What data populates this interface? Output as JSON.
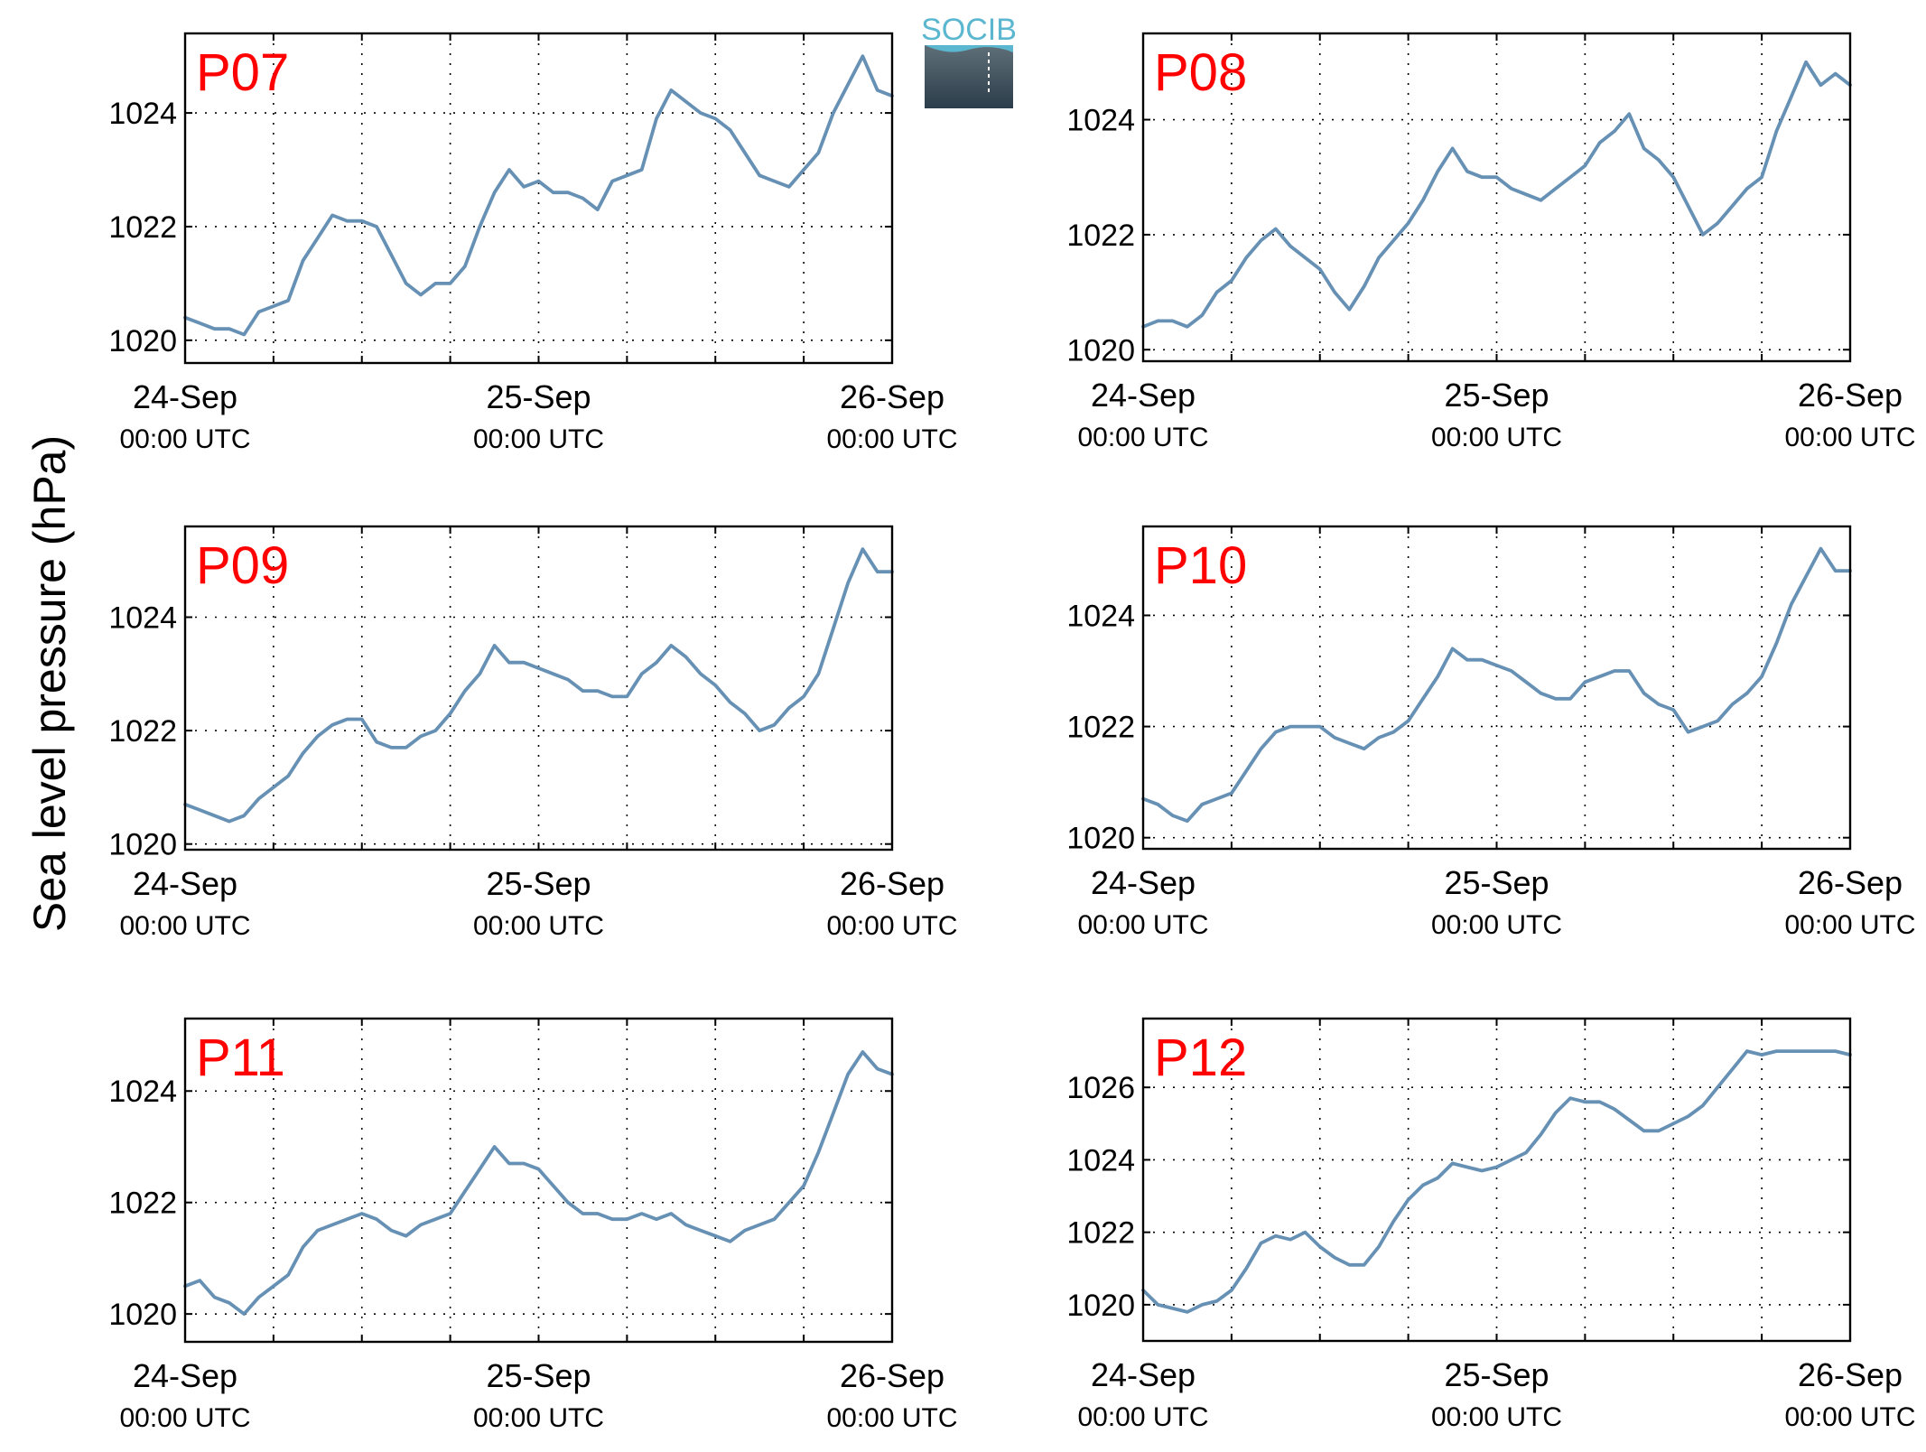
{
  "figure": {
    "ylabel": "Sea level pressure (hPa)",
    "logo_text": "SOCIB",
    "colors": {
      "line": "#6690b4",
      "panel_label": "#ff0000",
      "axis": "#000000",
      "grid": "#000000",
      "logo_top": "#5bb6cf",
      "logo_bottom": "#2b3d4a"
    }
  },
  "chart_data": [
    {
      "type": "line",
      "panel": "P07",
      "label": "P07",
      "x_range": [
        "24-Sep",
        "26-Sep"
      ],
      "xticks": [
        {
          "date": "24-Sep",
          "time": "00:00 UTC"
        },
        {
          "date": "25-Sep",
          "time": "00:00 UTC"
        },
        {
          "date": "26-Sep",
          "time": "00:00 UTC"
        }
      ],
      "ylim": [
        1019.6,
        1025.4
      ],
      "yticks": [
        1020,
        1022,
        1024
      ],
      "grid": true,
      "series": [
        {
          "x_hours": [
            0,
            1,
            2,
            3,
            4,
            5,
            6,
            7,
            8,
            9,
            10,
            11,
            12,
            13,
            14,
            15,
            16,
            17,
            18,
            19,
            20,
            21,
            22,
            23,
            24,
            25,
            26,
            27,
            28,
            29,
            30,
            31,
            32,
            33,
            34,
            35,
            36,
            37,
            38,
            39,
            40,
            41,
            42,
            43,
            44,
            45,
            46,
            47,
            48
          ],
          "values": [
            1020.4,
            1020.3,
            1020.2,
            1020.2,
            1020.1,
            1020.5,
            1020.6,
            1020.7,
            1021.4,
            1021.8,
            1022.2,
            1022.1,
            1022.1,
            1022.0,
            1021.5,
            1021.0,
            1020.8,
            1021.0,
            1021.0,
            1021.3,
            1022.0,
            1022.6,
            1023.0,
            1022.7,
            1022.8,
            1022.6,
            1022.6,
            1022.5,
            1022.3,
            1022.8,
            1022.9,
            1023.0,
            1023.9,
            1024.4,
            1024.2,
            1024.0,
            1023.9,
            1023.7,
            1023.3,
            1022.9,
            1022.8,
            1022.7,
            1023.0,
            1023.3,
            1024.0,
            1024.5,
            1025.0,
            1024.4,
            1024.3
          ]
        }
      ]
    },
    {
      "type": "line",
      "panel": "P08",
      "label": "P08",
      "x_range": [
        "24-Sep",
        "26-Sep"
      ],
      "xticks": [
        {
          "date": "24-Sep",
          "time": "00:00 UTC"
        },
        {
          "date": "25-Sep",
          "time": "00:00 UTC"
        },
        {
          "date": "26-Sep",
          "time": "00:00 UTC"
        }
      ],
      "ylim": [
        1019.8,
        1025.5
      ],
      "yticks": [
        1020,
        1022,
        1024
      ],
      "grid": true,
      "series": [
        {
          "x_hours": [
            0,
            1,
            2,
            3,
            4,
            5,
            6,
            7,
            8,
            9,
            10,
            11,
            12,
            13,
            14,
            15,
            16,
            17,
            18,
            19,
            20,
            21,
            22,
            23,
            24,
            25,
            26,
            27,
            28,
            29,
            30,
            31,
            32,
            33,
            34,
            35,
            36,
            37,
            38,
            39,
            40,
            41,
            42,
            43,
            44,
            45,
            46,
            47,
            48
          ],
          "values": [
            1020.4,
            1020.5,
            1020.5,
            1020.4,
            1020.6,
            1021.0,
            1021.2,
            1021.6,
            1021.9,
            1022.1,
            1021.8,
            1021.6,
            1021.4,
            1021.0,
            1020.7,
            1021.1,
            1021.6,
            1021.9,
            1022.2,
            1022.6,
            1023.1,
            1023.5,
            1023.1,
            1023.0,
            1023.0,
            1022.8,
            1022.7,
            1022.6,
            1022.8,
            1023.0,
            1023.2,
            1023.6,
            1023.8,
            1024.1,
            1023.5,
            1023.3,
            1023.0,
            1022.5,
            1022.0,
            1022.2,
            1022.5,
            1022.8,
            1023.0,
            1023.8,
            1024.4,
            1025.0,
            1024.6,
            1024.8,
            1024.6
          ]
        }
      ]
    },
    {
      "type": "line",
      "panel": "P09",
      "label": "P09",
      "x_range": [
        "24-Sep",
        "26-Sep"
      ],
      "xticks": [
        {
          "date": "24-Sep",
          "time": "00:00 UTC"
        },
        {
          "date": "25-Sep",
          "time": "00:00 UTC"
        },
        {
          "date": "26-Sep",
          "time": "00:00 UTC"
        }
      ],
      "ylim": [
        1019.9,
        1025.6
      ],
      "yticks": [
        1020,
        1022,
        1024
      ],
      "grid": true,
      "series": [
        {
          "x_hours": [
            0,
            1,
            2,
            3,
            4,
            5,
            6,
            7,
            8,
            9,
            10,
            11,
            12,
            13,
            14,
            15,
            16,
            17,
            18,
            19,
            20,
            21,
            22,
            23,
            24,
            25,
            26,
            27,
            28,
            29,
            30,
            31,
            32,
            33,
            34,
            35,
            36,
            37,
            38,
            39,
            40,
            41,
            42,
            43,
            44,
            45,
            46,
            47,
            48
          ],
          "values": [
            1020.7,
            1020.6,
            1020.5,
            1020.4,
            1020.5,
            1020.8,
            1021.0,
            1021.2,
            1021.6,
            1021.9,
            1022.1,
            1022.2,
            1022.2,
            1021.8,
            1021.7,
            1021.7,
            1021.9,
            1022.0,
            1022.3,
            1022.7,
            1023.0,
            1023.5,
            1023.2,
            1023.2,
            1023.1,
            1023.0,
            1022.9,
            1022.7,
            1022.7,
            1022.6,
            1022.6,
            1023.0,
            1023.2,
            1023.5,
            1023.3,
            1023.0,
            1022.8,
            1022.5,
            1022.3,
            1022.0,
            1022.1,
            1022.4,
            1022.6,
            1023.0,
            1023.8,
            1024.6,
            1025.2,
            1024.8,
            1024.8
          ]
        }
      ]
    },
    {
      "type": "line",
      "panel": "P10",
      "label": "P10",
      "x_range": [
        "24-Sep",
        "26-Sep"
      ],
      "xticks": [
        {
          "date": "24-Sep",
          "time": "00:00 UTC"
        },
        {
          "date": "25-Sep",
          "time": "00:00 UTC"
        },
        {
          "date": "26-Sep",
          "time": "00:00 UTC"
        }
      ],
      "ylim": [
        1019.8,
        1025.6
      ],
      "yticks": [
        1020,
        1022,
        1024
      ],
      "grid": true,
      "series": [
        {
          "x_hours": [
            0,
            1,
            2,
            3,
            4,
            5,
            6,
            7,
            8,
            9,
            10,
            11,
            12,
            13,
            14,
            15,
            16,
            17,
            18,
            19,
            20,
            21,
            22,
            23,
            24,
            25,
            26,
            27,
            28,
            29,
            30,
            31,
            32,
            33,
            34,
            35,
            36,
            37,
            38,
            39,
            40,
            41,
            42,
            43,
            44,
            45,
            46,
            47,
            48
          ],
          "values": [
            1020.7,
            1020.6,
            1020.4,
            1020.3,
            1020.6,
            1020.7,
            1020.8,
            1021.2,
            1021.6,
            1021.9,
            1022.0,
            1022.0,
            1022.0,
            1021.8,
            1021.7,
            1021.6,
            1021.8,
            1021.9,
            1022.1,
            1022.5,
            1022.9,
            1023.4,
            1023.2,
            1023.2,
            1023.1,
            1023.0,
            1022.8,
            1022.6,
            1022.5,
            1022.5,
            1022.8,
            1022.9,
            1023.0,
            1023.0,
            1022.6,
            1022.4,
            1022.3,
            1021.9,
            1022.0,
            1022.1,
            1022.4,
            1022.6,
            1022.9,
            1023.5,
            1024.2,
            1024.7,
            1025.2,
            1024.8,
            1024.8
          ]
        }
      ]
    },
    {
      "type": "line",
      "panel": "P11",
      "label": "P11",
      "x_range": [
        "24-Sep",
        "26-Sep"
      ],
      "xticks": [
        {
          "date": "24-Sep",
          "time": "00:00 UTC"
        },
        {
          "date": "25-Sep",
          "time": "00:00 UTC"
        },
        {
          "date": "26-Sep",
          "time": "00:00 UTC"
        }
      ],
      "ylim": [
        1019.5,
        1025.3
      ],
      "yticks": [
        1020,
        1022,
        1024
      ],
      "grid": true,
      "series": [
        {
          "x_hours": [
            0,
            1,
            2,
            3,
            4,
            5,
            6,
            7,
            8,
            9,
            10,
            11,
            12,
            13,
            14,
            15,
            16,
            17,
            18,
            19,
            20,
            21,
            22,
            23,
            24,
            25,
            26,
            27,
            28,
            29,
            30,
            31,
            32,
            33,
            34,
            35,
            36,
            37,
            38,
            39,
            40,
            41,
            42,
            43,
            44,
            45,
            46,
            47,
            48
          ],
          "values": [
            1020.5,
            1020.6,
            1020.3,
            1020.2,
            1020.0,
            1020.3,
            1020.5,
            1020.7,
            1021.2,
            1021.5,
            1021.6,
            1021.7,
            1021.8,
            1021.7,
            1021.5,
            1021.4,
            1021.6,
            1021.7,
            1021.8,
            1022.2,
            1022.6,
            1023.0,
            1022.7,
            1022.7,
            1022.6,
            1022.3,
            1022.0,
            1021.8,
            1021.8,
            1021.7,
            1021.7,
            1021.8,
            1021.7,
            1021.8,
            1021.6,
            1021.5,
            1021.4,
            1021.3,
            1021.5,
            1021.6,
            1021.7,
            1022.0,
            1022.3,
            1022.9,
            1023.6,
            1024.3,
            1024.7,
            1024.4,
            1024.3
          ]
        }
      ]
    },
    {
      "type": "line",
      "panel": "P12",
      "label": "P12",
      "x_range": [
        "24-Sep",
        "26-Sep"
      ],
      "xticks": [
        {
          "date": "24-Sep",
          "time": "00:00 UTC"
        },
        {
          "date": "25-Sep",
          "time": "00:00 UTC"
        },
        {
          "date": "26-Sep",
          "time": "00:00 UTC"
        }
      ],
      "ylim": [
        1019.0,
        1027.9
      ],
      "yticks": [
        1020,
        1022,
        1024,
        1026
      ],
      "grid": true,
      "series": [
        {
          "x_hours": [
            0,
            1,
            2,
            3,
            4,
            5,
            6,
            7,
            8,
            9,
            10,
            11,
            12,
            13,
            14,
            15,
            16,
            17,
            18,
            19,
            20,
            21,
            22,
            23,
            24,
            25,
            26,
            27,
            28,
            29,
            30,
            31,
            32,
            33,
            34,
            35,
            36,
            37,
            38,
            39,
            40,
            41,
            42,
            43,
            44,
            45,
            46,
            47,
            48
          ],
          "values": [
            1020.4,
            1020.0,
            1019.9,
            1019.8,
            1020.0,
            1020.1,
            1020.4,
            1021.0,
            1021.7,
            1021.9,
            1021.8,
            1022.0,
            1021.6,
            1021.3,
            1021.1,
            1021.1,
            1021.6,
            1022.3,
            1022.9,
            1023.3,
            1023.5,
            1023.9,
            1023.8,
            1023.7,
            1023.8,
            1024.0,
            1024.2,
            1024.7,
            1025.3,
            1025.7,
            1025.6,
            1025.6,
            1025.4,
            1025.1,
            1024.8,
            1024.8,
            1025.0,
            1025.2,
            1025.5,
            1026.0,
            1026.5,
            1027.0,
            1026.9,
            1027.0,
            1027.0,
            1027.0,
            1027.0,
            1027.0,
            1026.9
          ]
        }
      ]
    }
  ]
}
